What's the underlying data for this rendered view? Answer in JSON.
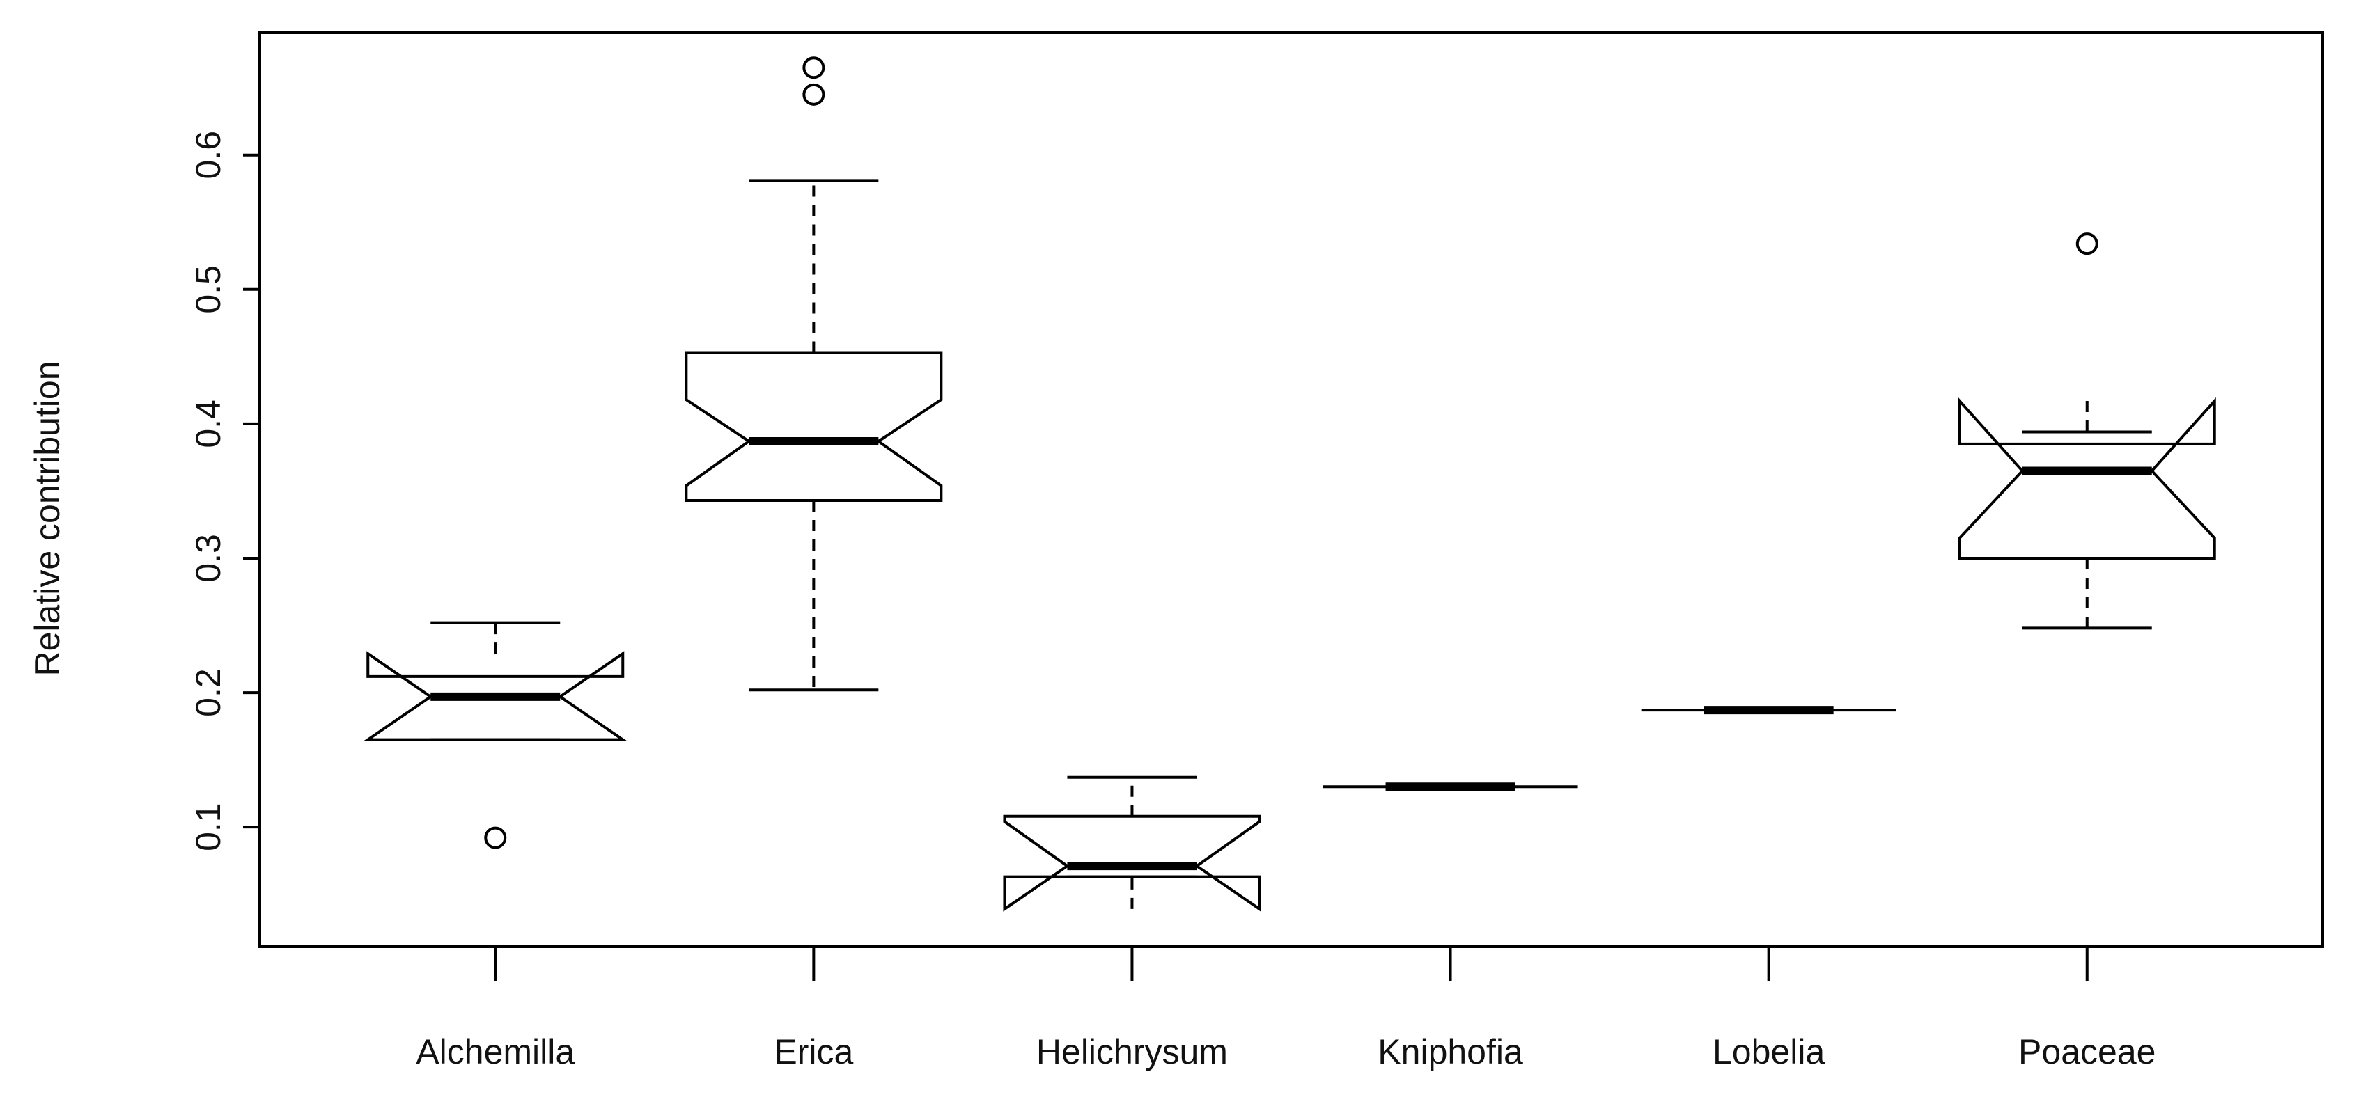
{
  "chart_data": {
    "type": "boxplot",
    "ylabel": "Relative contribution",
    "categories": [
      "Alchemilla",
      "Erica",
      "Helichrysum",
      "Kniphofia",
      "Lobelia",
      "Poaceae"
    ],
    "boxes": [
      {
        "whisker_low": 0.165,
        "q1": 0.165,
        "median": 0.197,
        "q3": 0.212,
        "whisker_high": 0.252,
        "notch_low": 0.165,
        "notch_high": 0.229,
        "outliers": [
          0.092
        ]
      },
      {
        "whisker_low": 0.202,
        "q1": 0.343,
        "median": 0.387,
        "q3": 0.453,
        "whisker_high": 0.581,
        "notch_low": 0.354,
        "notch_high": 0.418,
        "outliers": [
          0.665,
          0.645
        ]
      },
      {
        "whisker_low": 0.063,
        "q1": 0.063,
        "median": 0.071,
        "q3": 0.108,
        "whisker_high": 0.137,
        "notch_low": 0.039,
        "notch_high": 0.104,
        "outliers": []
      },
      {
        "whisker_low": 0.13,
        "q1": 0.13,
        "median": 0.13,
        "q3": 0.13,
        "whisker_high": 0.13,
        "notch_low": 0.13,
        "notch_high": 0.13,
        "outliers": []
      },
      {
        "whisker_low": 0.187,
        "q1": 0.187,
        "median": 0.187,
        "q3": 0.187,
        "whisker_high": 0.187,
        "notch_low": 0.187,
        "notch_high": 0.187,
        "outliers": []
      },
      {
        "whisker_low": 0.248,
        "q1": 0.3,
        "median": 0.365,
        "q3": 0.385,
        "whisker_high": 0.394,
        "notch_low": 0.315,
        "notch_high": 0.417,
        "outliers": [
          0.534
        ]
      }
    ],
    "color": "#000000",
    "ylim": [
      0.011,
      0.691
    ],
    "yticks": [
      0.1,
      0.2,
      0.3,
      0.4,
      0.5,
      0.6
    ]
  }
}
